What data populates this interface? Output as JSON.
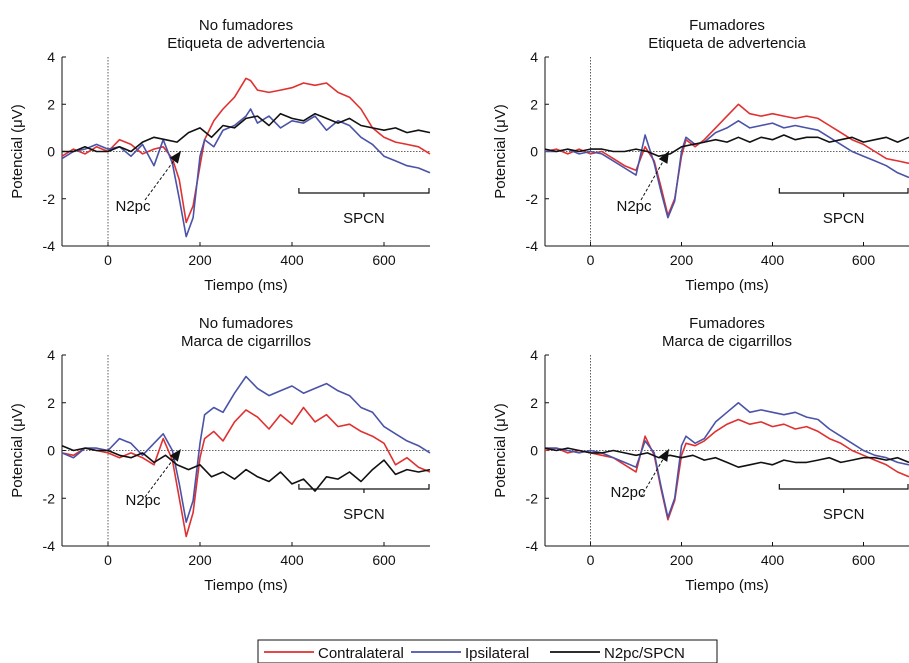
{
  "chart_data": [
    {
      "type": "line",
      "title": "No fumadores",
      "subtitle": "Etiqueta de advertencia",
      "xlabel": "Tiempo (ms)",
      "ylabel": "Potencial (μV)",
      "xlim": [
        -100,
        700
      ],
      "ylim": [
        -4,
        4
      ],
      "xticks": [
        0,
        200,
        400,
        600
      ],
      "yticks": [
        4,
        2,
        0,
        -2,
        -4
      ],
      "annotations": {
        "arrow_label": "N2pc",
        "bracket_label": "SPCN",
        "bracket_range": [
          415,
          700
        ]
      },
      "series": [
        {
          "name": "Contralateral",
          "color": "#e03131",
          "x": [
            -100,
            -75,
            -50,
            -25,
            0,
            25,
            50,
            75,
            100,
            120,
            140,
            155,
            170,
            185,
            200,
            210,
            230,
            250,
            275,
            300,
            310,
            325,
            350,
            375,
            400,
            425,
            450,
            475,
            500,
            525,
            550,
            575,
            600,
            625,
            650,
            675,
            700
          ],
          "y": [
            -0.2,
            0.1,
            -0.1,
            0.2,
            0,
            0.5,
            0.3,
            -0.1,
            0.1,
            0.2,
            -0.3,
            -1.2,
            -3.0,
            -2.3,
            -0.6,
            0.5,
            1.3,
            1.8,
            2.3,
            3.1,
            3.0,
            2.6,
            2.5,
            2.6,
            2.7,
            2.9,
            2.8,
            2.9,
            2.5,
            2.3,
            1.8,
            1.0,
            0.6,
            0.4,
            0.3,
            0.2,
            -0.1
          ]
        },
        {
          "name": "Ipsilateral",
          "color": "#4a53a8",
          "x": [
            -100,
            -75,
            -50,
            -25,
            0,
            25,
            50,
            75,
            100,
            120,
            140,
            155,
            170,
            185,
            200,
            210,
            230,
            250,
            275,
            300,
            310,
            325,
            350,
            375,
            400,
            425,
            450,
            475,
            500,
            525,
            550,
            575,
            600,
            625,
            650,
            675,
            700
          ],
          "y": [
            -0.3,
            0,
            0.1,
            0.3,
            0.1,
            0.2,
            -0.2,
            0.3,
            -0.6,
            0.5,
            -0.5,
            -2.0,
            -3.6,
            -2.8,
            -0.2,
            0.5,
            0.2,
            0.9,
            1.1,
            1.5,
            1.8,
            1.2,
            1.5,
            1.0,
            1.3,
            1.2,
            1.5,
            0.9,
            1.3,
            1.1,
            0.6,
            0.3,
            -0.2,
            -0.4,
            -0.6,
            -0.7,
            -0.9
          ]
        },
        {
          "name": "N2pc/SPCN",
          "color": "#111111",
          "x": [
            -100,
            -75,
            -50,
            -25,
            0,
            25,
            50,
            75,
            100,
            125,
            150,
            175,
            200,
            225,
            250,
            275,
            300,
            325,
            350,
            375,
            400,
            425,
            450,
            475,
            500,
            525,
            550,
            575,
            600,
            625,
            650,
            675,
            700
          ],
          "y": [
            0,
            0,
            0.2,
            0,
            0,
            0.2,
            0,
            0.4,
            0.6,
            0.5,
            0.4,
            0.8,
            1.0,
            0.6,
            1.1,
            1.0,
            1.4,
            1.5,
            1.1,
            1.6,
            1.4,
            1.3,
            1.6,
            1.4,
            1.2,
            1.4,
            1.1,
            1.0,
            0.9,
            1.0,
            0.8,
            0.9,
            0.8
          ]
        }
      ]
    },
    {
      "type": "line",
      "title": "Fumadores",
      "subtitle": "Etiqueta de advertencia",
      "xlabel": "Tiempo (ms)",
      "ylabel": "Potencial (μV)",
      "xlim": [
        -100,
        700
      ],
      "ylim": [
        -4,
        4
      ],
      "xticks": [
        0,
        200,
        400,
        600
      ],
      "yticks": [
        4,
        2,
        0,
        -2,
        -4
      ],
      "annotations": {
        "arrow_label": "N2pc",
        "bracket_label": "SPCN",
        "bracket_range": [
          415,
          700
        ]
      },
      "series": [
        {
          "name": "Contralateral",
          "color": "#e03131",
          "x": [
            -100,
            -75,
            -50,
            -25,
            0,
            25,
            50,
            75,
            100,
            120,
            140,
            155,
            170,
            185,
            200,
            210,
            230,
            250,
            275,
            300,
            325,
            350,
            375,
            400,
            425,
            450,
            475,
            500,
            525,
            550,
            575,
            600,
            625,
            650,
            675,
            700
          ],
          "y": [
            0,
            0.1,
            -0.1,
            0.1,
            -0.1,
            0,
            -0.3,
            -0.6,
            -0.8,
            0.2,
            -0.4,
            -1.5,
            -2.7,
            -2.0,
            -0.2,
            0.5,
            0.2,
            0.5,
            1.0,
            1.5,
            2.0,
            1.6,
            1.5,
            1.6,
            1.5,
            1.4,
            1.5,
            1.4,
            1.1,
            0.8,
            0.5,
            0.3,
            0,
            -0.3,
            -0.4,
            -0.5
          ]
        },
        {
          "name": "Ipsilateral",
          "color": "#4a53a8",
          "x": [
            -100,
            -75,
            -50,
            -25,
            0,
            25,
            50,
            75,
            100,
            120,
            140,
            155,
            170,
            185,
            200,
            210,
            230,
            250,
            275,
            300,
            325,
            350,
            375,
            400,
            425,
            450,
            475,
            500,
            525,
            550,
            575,
            600,
            625,
            650,
            675,
            700
          ],
          "y": [
            0,
            0,
            0.1,
            -0.1,
            0,
            -0.1,
            -0.4,
            -0.7,
            -1.0,
            0.7,
            -0.5,
            -1.7,
            -2.8,
            -2.1,
            0,
            0.6,
            0.3,
            0.4,
            0.8,
            1.0,
            1.3,
            1.0,
            1.1,
            1.2,
            1.0,
            1.1,
            1.0,
            0.9,
            0.6,
            0.3,
            0,
            -0.2,
            -0.4,
            -0.6,
            -0.9,
            -1.1
          ]
        },
        {
          "name": "N2pc/SPCN",
          "color": "#111111",
          "x": [
            -100,
            -75,
            -50,
            -25,
            0,
            25,
            50,
            75,
            100,
            125,
            150,
            175,
            200,
            225,
            250,
            275,
            300,
            325,
            350,
            375,
            400,
            425,
            450,
            475,
            500,
            525,
            550,
            575,
            600,
            625,
            650,
            675,
            700
          ],
          "y": [
            0.1,
            0,
            0.1,
            0,
            0.1,
            0.1,
            0,
            0,
            0.1,
            0,
            -0.2,
            -0.1,
            0.2,
            0.3,
            0.4,
            0.5,
            0.4,
            0.6,
            0.4,
            0.6,
            0.5,
            0.7,
            0.5,
            0.6,
            0.6,
            0.4,
            0.5,
            0.6,
            0.4,
            0.5,
            0.6,
            0.4,
            0.6
          ]
        }
      ]
    },
    {
      "type": "line",
      "title": "No fumadores",
      "subtitle": "Marca de cigarrillos",
      "xlabel": "Tiempo (ms)",
      "ylabel": "Potencial (μV)",
      "xlim": [
        -100,
        700
      ],
      "ylim": [
        -4,
        4
      ],
      "xticks": [
        0,
        200,
        400,
        600
      ],
      "yticks": [
        4,
        2,
        0,
        -2,
        -4
      ],
      "annotations": {
        "arrow_label": "N2pc",
        "bracket_label": "SPCN",
        "bracket_range": [
          415,
          700
        ]
      },
      "series": [
        {
          "name": "Contralateral",
          "color": "#e03131",
          "x": [
            -100,
            -75,
            -50,
            -25,
            0,
            25,
            50,
            75,
            100,
            120,
            140,
            155,
            170,
            185,
            200,
            210,
            230,
            250,
            275,
            300,
            325,
            350,
            375,
            400,
            425,
            450,
            475,
            500,
            525,
            550,
            575,
            600,
            625,
            650,
            675,
            700
          ],
          "y": [
            -0.1,
            -0.2,
            0.1,
            0,
            -0.1,
            -0.3,
            -0.1,
            -0.3,
            -0.6,
            0.5,
            -0.4,
            -2.0,
            -3.6,
            -2.6,
            -0.3,
            0.5,
            0.8,
            0.4,
            1.2,
            1.7,
            1.4,
            0.9,
            1.5,
            1.1,
            1.8,
            1.2,
            1.5,
            1.0,
            1.1,
            0.8,
            0.6,
            0.3,
            -0.6,
            -0.3,
            -0.7,
            -0.9
          ]
        },
        {
          "name": "Ipsilateral",
          "color": "#4a53a8",
          "x": [
            -100,
            -75,
            -50,
            -25,
            0,
            25,
            50,
            75,
            100,
            120,
            140,
            155,
            170,
            185,
            200,
            210,
            230,
            250,
            275,
            300,
            325,
            350,
            375,
            400,
            425,
            450,
            475,
            500,
            525,
            550,
            575,
            600,
            625,
            650,
            675,
            700
          ],
          "y": [
            -0.1,
            -0.3,
            0.1,
            0.1,
            0,
            0.5,
            0.3,
            -0.2,
            0.3,
            0.7,
            0,
            -1.4,
            -3.0,
            -2.1,
            0.3,
            1.5,
            1.8,
            1.6,
            2.4,
            3.1,
            2.6,
            2.3,
            2.5,
            2.7,
            2.4,
            2.6,
            2.8,
            2.5,
            2.3,
            1.8,
            1.6,
            1.0,
            0.7,
            0.4,
            0.2,
            -0.1
          ]
        },
        {
          "name": "N2pc/SPCN",
          "color": "#111111",
          "x": [
            -100,
            -75,
            -50,
            -25,
            0,
            25,
            50,
            75,
            100,
            125,
            150,
            175,
            200,
            225,
            250,
            275,
            300,
            325,
            350,
            375,
            400,
            425,
            450,
            475,
            500,
            525,
            550,
            575,
            600,
            625,
            650,
            675,
            700
          ],
          "y": [
            0.2,
            0,
            0.1,
            0,
            0,
            -0.2,
            -0.3,
            -0.1,
            -0.5,
            -0.2,
            -0.6,
            -0.8,
            -0.6,
            -1.1,
            -0.9,
            -1.2,
            -0.8,
            -1.1,
            -1.3,
            -0.9,
            -1.4,
            -1.2,
            -1.7,
            -1.1,
            -1.2,
            -0.9,
            -1.3,
            -0.8,
            -0.4,
            -1.0,
            -0.8,
            -0.9,
            -0.8
          ]
        }
      ]
    },
    {
      "type": "line",
      "title": "Fumadores",
      "subtitle": "Marca de cigarrillos",
      "xlabel": "Tiempo (ms)",
      "ylabel": "Potencial (μV)",
      "xlim": [
        -100,
        700
      ],
      "ylim": [
        -4,
        4
      ],
      "xticks": [
        0,
        200,
        400,
        600
      ],
      "yticks": [
        4,
        2,
        0,
        -2,
        -4
      ],
      "annotations": {
        "arrow_label": "N2pc",
        "bracket_label": "SPCN",
        "bracket_range": [
          415,
          700
        ]
      },
      "series": [
        {
          "name": "Contralateral",
          "color": "#e03131",
          "x": [
            -100,
            -75,
            -50,
            -25,
            0,
            25,
            50,
            75,
            100,
            120,
            140,
            155,
            170,
            185,
            200,
            210,
            230,
            250,
            275,
            300,
            325,
            350,
            375,
            400,
            425,
            450,
            475,
            500,
            525,
            550,
            575,
            600,
            625,
            650,
            675,
            700
          ],
          "y": [
            0,
            0.1,
            -0.1,
            0,
            -0.1,
            -0.2,
            -0.3,
            -0.6,
            -0.9,
            0.6,
            -0.2,
            -1.6,
            -2.9,
            -2.1,
            -0.2,
            0.3,
            0.2,
            0.4,
            0.8,
            1.1,
            1.3,
            1.1,
            1.2,
            1.0,
            1.1,
            0.9,
            1.0,
            0.8,
            0.5,
            0.3,
            0,
            -0.2,
            -0.4,
            -0.6,
            -0.9,
            -1.1
          ]
        },
        {
          "name": "Ipsilateral",
          "color": "#4a53a8",
          "x": [
            -100,
            -75,
            -50,
            -25,
            0,
            25,
            50,
            75,
            100,
            120,
            140,
            155,
            170,
            185,
            200,
            210,
            230,
            250,
            275,
            300,
            325,
            350,
            375,
            400,
            425,
            450,
            475,
            500,
            525,
            550,
            575,
            600,
            625,
            650,
            675,
            700
          ],
          "y": [
            0.1,
            0.1,
            0,
            -0.1,
            0,
            -0.1,
            -0.3,
            -0.5,
            -0.7,
            0.4,
            -0.1,
            -1.5,
            -2.8,
            -2.0,
            0.2,
            0.6,
            0.3,
            0.5,
            1.2,
            1.6,
            2.0,
            1.6,
            1.7,
            1.6,
            1.5,
            1.6,
            1.4,
            1.3,
            0.9,
            0.6,
            0.3,
            0,
            -0.2,
            -0.3,
            -0.5,
            -0.6
          ]
        },
        {
          "name": "N2pc/SPCN",
          "color": "#111111",
          "x": [
            -100,
            -75,
            -50,
            -25,
            0,
            25,
            50,
            75,
            100,
            125,
            150,
            175,
            200,
            225,
            250,
            275,
            300,
            325,
            350,
            375,
            400,
            425,
            450,
            475,
            500,
            525,
            550,
            575,
            600,
            625,
            650,
            675,
            700
          ],
          "y": [
            0.1,
            0,
            0.1,
            0,
            -0.1,
            -0.1,
            0,
            -0.1,
            -0.2,
            -0.1,
            -0.3,
            -0.2,
            -0.3,
            -0.2,
            -0.4,
            -0.3,
            -0.5,
            -0.7,
            -0.6,
            -0.5,
            -0.6,
            -0.4,
            -0.5,
            -0.5,
            -0.4,
            -0.3,
            -0.5,
            -0.4,
            -0.3,
            -0.3,
            -0.4,
            -0.3,
            -0.5
          ]
        }
      ]
    }
  ],
  "legend": {
    "entries": [
      {
        "label": "Contralateral",
        "color": "#e03131"
      },
      {
        "label": "Ipsilateral",
        "color": "#4a53a8"
      },
      {
        "label": "N2pc/SPCN",
        "color": "#111111"
      }
    ]
  }
}
